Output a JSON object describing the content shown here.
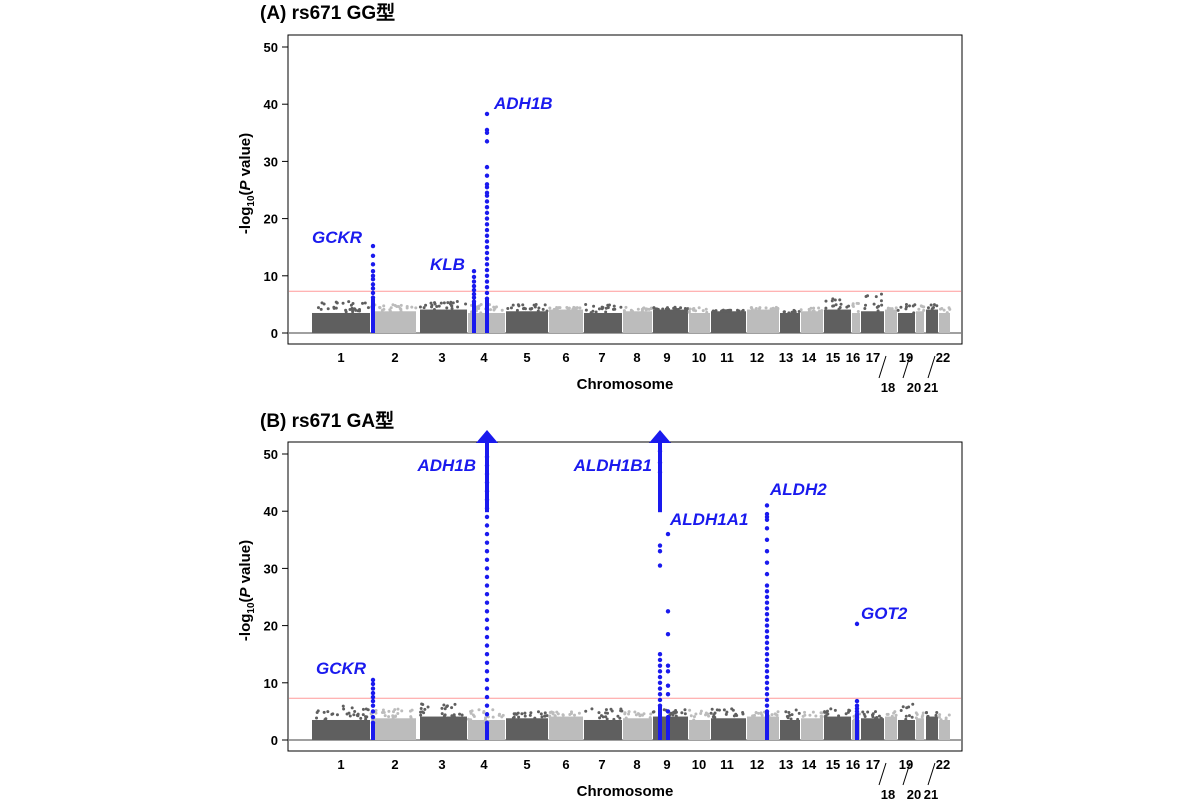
{
  "chart_data": [
    {
      "type": "scatter",
      "plot_kind": "Manhattan plot",
      "title": "(A) rs671 GG型",
      "xlabel": "Chromosome",
      "ylabel_parts": [
        "-log",
        "10",
        "(",
        "P",
        " value)"
      ],
      "ylim": [
        0,
        52
      ],
      "yticks": [
        0,
        10,
        20,
        30,
        40,
        50
      ],
      "threshold": 7.3,
      "chromosomes": [
        "1",
        "2",
        "3",
        "4",
        "5",
        "6",
        "7",
        "8",
        "9",
        "10",
        "11",
        "12",
        "13",
        "14",
        "15",
        "16",
        "17",
        "18",
        "19",
        "20",
        "21",
        "22"
      ],
      "chromosome_tick_labels": [
        "1",
        "2",
        "3",
        "4",
        "5",
        "6",
        "7",
        "8",
        "9",
        "10",
        "11",
        "12",
        "13",
        "14",
        "15",
        "16",
        "17",
        "18",
        "19",
        "20",
        "21",
        "22"
      ],
      "background_max_per_chromosome": [
        5.5,
        5.0,
        5.5,
        5.0,
        5.0,
        4.5,
        5.0,
        4.5,
        4.5,
        4.5,
        4.0,
        4.5,
        4.0,
        4.5,
        6.0,
        5.5,
        6.8,
        4.5,
        5.0,
        5.0,
        5.0,
        4.5
      ],
      "loci": [
        {
          "gene": "GCKR",
          "chromosome": "2",
          "peak": 15.2,
          "values": [
            15.2,
            13.5,
            12.0,
            10.8,
            10.0,
            9.4,
            8.5,
            7.8,
            7.0,
            6.2
          ]
        },
        {
          "gene": "KLB",
          "chromosome": "4",
          "peak": 10.8,
          "values": [
            10.8,
            9.8,
            9.0,
            8.2,
            7.5,
            6.8,
            6.2,
            5.5
          ]
        },
        {
          "gene": "ADH1B",
          "chromosome": "4",
          "peak": 38.3,
          "values": [
            38.3,
            35.5,
            35.0,
            33.5,
            29.0,
            27.5,
            26.0,
            25.5,
            24.5,
            24.0,
            23.0,
            22.0,
            21.0,
            20.0,
            19.0,
            18.0,
            17.0,
            16.0,
            15.0,
            14.0,
            13.0,
            12.0,
            11.0,
            10.0,
            9.0,
            8.0,
            7.0,
            6.0
          ]
        }
      ]
    },
    {
      "type": "scatter",
      "plot_kind": "Manhattan plot",
      "title": "(B) rs671 GA型",
      "xlabel": "Chromosome",
      "ylabel_parts": [
        "-log",
        "10",
        "(",
        "P",
        " value)"
      ],
      "ylim": [
        0,
        52
      ],
      "yticks": [
        0,
        10,
        20,
        30,
        40,
        50
      ],
      "threshold": 7.3,
      "chromosomes": [
        "1",
        "2",
        "3",
        "4",
        "5",
        "6",
        "7",
        "8",
        "9",
        "10",
        "11",
        "12",
        "13",
        "14",
        "15",
        "16",
        "17",
        "18",
        "19",
        "20",
        "21",
        "22"
      ],
      "chromosome_tick_labels": [
        "1",
        "2",
        "3",
        "4",
        "5",
        "6",
        "7",
        "8",
        "9",
        "10",
        "11",
        "12",
        "13",
        "14",
        "15",
        "16",
        "17",
        "18",
        "19",
        "20",
        "21",
        "22"
      ],
      "background_max_per_chromosome": [
        6.0,
        5.5,
        6.5,
        5.5,
        5.0,
        5.0,
        5.5,
        5.0,
        5.5,
        5.5,
        5.5,
        5.0,
        5.5,
        5.0,
        5.5,
        5.0,
        5.0,
        5.0,
        6.5,
        5.0,
        5.0,
        4.5
      ],
      "loci": [
        {
          "gene": "GCKR",
          "chromosome": "2",
          "peak": 10.5,
          "values": [
            10.5,
            9.8,
            9.0,
            8.2,
            7.5,
            6.8,
            6.0,
            5.0,
            4.0,
            3.0
          ]
        },
        {
          "gene": "ADH1B",
          "chromosome": "4",
          "peak": 52,
          "off_scale": true,
          "values": [
            49.5,
            48.0,
            46.5,
            45.0,
            43.5,
            42.0,
            40.5,
            39.0,
            37.5,
            36.0,
            34.5,
            33.0,
            31.5,
            30.0,
            28.5,
            27.0,
            25.5,
            24.0,
            22.5,
            21.0,
            19.5,
            18.0,
            16.5,
            15.0,
            13.5,
            12.0,
            10.5,
            9.0,
            7.5,
            6.0,
            4.5,
            3.0
          ]
        },
        {
          "gene": "ALDH1B1",
          "chromosome": "9",
          "peak": 52,
          "off_scale": true,
          "values": [
            50.5,
            48.5,
            46.8
          ]
        },
        {
          "gene": "ALDH1A1",
          "chromosome": "9",
          "peak": 36.0,
          "values": [
            34.0,
            33.0,
            30.5,
            15.0,
            14.0,
            13.0,
            12.0,
            11.0,
            10.0,
            9.0,
            8.0,
            7.0,
            6.0
          ]
        },
        {
          "gene": "ALDH1A1",
          "chromosome": "9",
          "peak": 36.0,
          "values": [
            36.0,
            22.5,
            18.5,
            13.0,
            12.0,
            9.5,
            8.0,
            5.0,
            4.0
          ]
        },
        {
          "gene": "ALDH2",
          "chromosome": "12",
          "peak": 41.0,
          "values": [
            41.0,
            39.5,
            39.0,
            38.5,
            37.0,
            35.0,
            33.0,
            31.0,
            29.0,
            27.0,
            26.0,
            25.0,
            24.0,
            23.0,
            22.0,
            21.0,
            20.0,
            19.0,
            18.0,
            17.0,
            16.0,
            15.0,
            14.0,
            13.0,
            12.0,
            11.0,
            10.0,
            9.0,
            8.0,
            7.0,
            6.0,
            5.0
          ]
        },
        {
          "gene": "GOT2",
          "chromosome": "16",
          "peak": 20.3,
          "values": [
            20.3,
            6.8,
            6.0,
            5.5,
            5.0,
            4.5
          ]
        }
      ]
    }
  ],
  "colors": {
    "dark_gray": "#5f5f5f",
    "light_gray": "#bcbcbc",
    "highlight_blue": "#1a1aee",
    "threshold_line": "#ff9a9a",
    "zero_line": "#808080",
    "frame": "#000000"
  }
}
